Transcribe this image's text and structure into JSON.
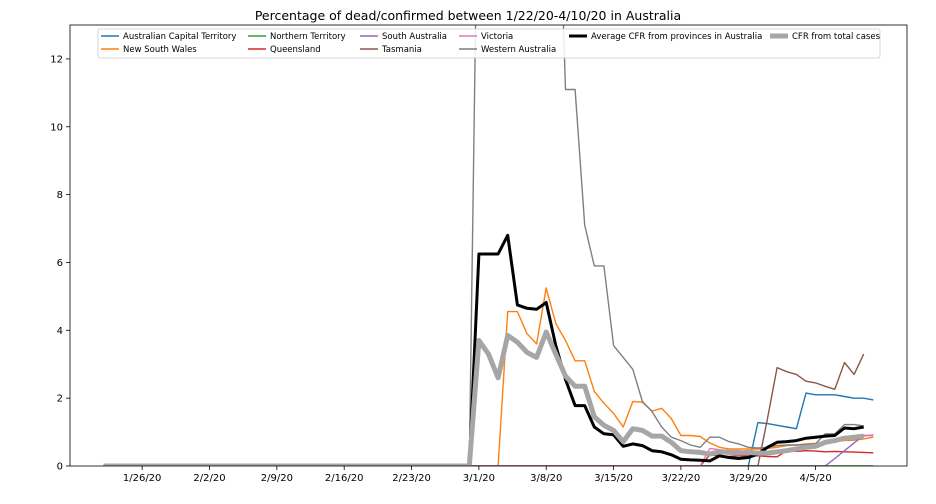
{
  "chart_data": {
    "type": "line",
    "title": "Percentage of dead/confirmed between 1/22/20-4/10/20 in Australia",
    "xlabel": "",
    "ylabel": "",
    "ylim": [
      0,
      13
    ],
    "grid": false,
    "legend_position": "top",
    "x_start_date": "1/22/20",
    "x_ticks": [
      {
        "label": "1/26/20",
        "day": 4
      },
      {
        "label": "2/2/20",
        "day": 11
      },
      {
        "label": "2/9/20",
        "day": 18
      },
      {
        "label": "2/16/20",
        "day": 25
      },
      {
        "label": "2/23/20",
        "day": 32
      },
      {
        "label": "3/1/20",
        "day": 39
      },
      {
        "label": "3/8/20",
        "day": 46
      },
      {
        "label": "3/15/20",
        "day": 53
      },
      {
        "label": "3/22/20",
        "day": 60
      },
      {
        "label": "3/29/20",
        "day": 67
      },
      {
        "label": "4/5/20",
        "day": 74
      }
    ],
    "y_ticks": [
      0,
      2,
      4,
      6,
      8,
      10,
      12
    ],
    "series": [
      {
        "name": "Australian Capital Territory",
        "color": "#1f77b4",
        "width": 1.4,
        "points": [
          [
            0,
            0
          ],
          [
            67,
            0
          ],
          [
            68,
            1.28
          ],
          [
            69,
            1.25
          ],
          [
            70,
            1.2
          ],
          [
            71,
            1.15
          ],
          [
            72,
            1.1
          ],
          [
            73,
            2.15
          ],
          [
            74,
            2.1
          ],
          [
            75,
            2.1
          ],
          [
            76,
            2.1
          ],
          [
            77,
            2.05
          ],
          [
            78,
            2.0
          ],
          [
            79,
            2.0
          ],
          [
            80,
            1.95
          ]
        ]
      },
      {
        "name": "New South Wales",
        "color": "#ff7f0e",
        "width": 1.4,
        "points": [
          [
            0,
            0
          ],
          [
            41,
            0
          ],
          [
            42,
            4.55
          ],
          [
            43,
            4.55
          ],
          [
            44,
            3.9
          ],
          [
            45,
            3.6
          ],
          [
            46,
            5.25
          ],
          [
            47,
            4.2
          ],
          [
            48,
            3.7
          ],
          [
            49,
            3.1
          ],
          [
            50,
            3.1
          ],
          [
            51,
            2.2
          ],
          [
            52,
            1.85
          ],
          [
            53,
            1.55
          ],
          [
            54,
            1.15
          ],
          [
            55,
            1.9
          ],
          [
            56,
            1.88
          ],
          [
            57,
            1.62
          ],
          [
            58,
            1.7
          ],
          [
            59,
            1.4
          ],
          [
            60,
            0.9
          ],
          [
            61,
            0.9
          ],
          [
            62,
            0.87
          ],
          [
            63,
            0.68
          ],
          [
            64,
            0.55
          ],
          [
            65,
            0.5
          ],
          [
            66,
            0.5
          ],
          [
            67,
            0.5
          ],
          [
            68,
            0.5
          ],
          [
            69,
            0.52
          ],
          [
            70,
            0.55
          ],
          [
            71,
            0.6
          ],
          [
            72,
            0.62
          ],
          [
            73,
            0.65
          ],
          [
            74,
            0.67
          ],
          [
            75,
            0.7
          ],
          [
            76,
            0.72
          ],
          [
            77,
            0.75
          ],
          [
            78,
            0.76
          ],
          [
            79,
            0.8
          ],
          [
            80,
            0.85
          ]
        ]
      },
      {
        "name": "Northern Territory",
        "color": "#2ca02c",
        "width": 1.4,
        "points": [
          [
            0,
            0
          ],
          [
            80,
            0
          ]
        ]
      },
      {
        "name": "Queensland",
        "color": "#d62728",
        "width": 1.4,
        "points": [
          [
            0,
            0
          ],
          [
            62,
            0
          ],
          [
            63,
            0.33
          ],
          [
            64,
            0.3
          ],
          [
            65,
            0.28
          ],
          [
            66,
            0.3
          ],
          [
            67,
            0.3
          ],
          [
            68,
            0.3
          ],
          [
            69,
            0.28
          ],
          [
            70,
            0.27
          ],
          [
            71,
            0.45
          ],
          [
            72,
            0.43
          ],
          [
            73,
            0.45
          ],
          [
            74,
            0.44
          ],
          [
            75,
            0.42
          ],
          [
            76,
            0.43
          ],
          [
            77,
            0.42
          ],
          [
            78,
            0.41
          ],
          [
            79,
            0.4
          ],
          [
            80,
            0.39
          ]
        ]
      },
      {
        "name": "South Australia",
        "color": "#9467bd",
        "width": 1.4,
        "points": [
          [
            0,
            0
          ],
          [
            75,
            0
          ],
          [
            76,
            0.22
          ],
          [
            77,
            0.45
          ],
          [
            78,
            0.68
          ],
          [
            79,
            0.9
          ],
          [
            80,
            0.9
          ]
        ]
      },
      {
        "name": "Tasmania",
        "color": "#8c564b",
        "width": 1.4,
        "points": [
          [
            0,
            0
          ],
          [
            68,
            0
          ],
          [
            69,
            1.4
          ],
          [
            70,
            2.9
          ],
          [
            71,
            2.78
          ],
          [
            72,
            2.7
          ],
          [
            73,
            2.5
          ],
          [
            74,
            2.45
          ],
          [
            75,
            2.35
          ],
          [
            76,
            2.26
          ],
          [
            77,
            3.05
          ],
          [
            78,
            2.7
          ],
          [
            79,
            3.3
          ]
        ]
      },
      {
        "name": "Victoria",
        "color": "#e377c2",
        "width": 1.4,
        "points": [
          [
            0,
            0
          ],
          [
            62,
            0
          ],
          [
            63,
            0.52
          ],
          [
            64,
            0.48
          ],
          [
            65,
            0.45
          ],
          [
            66,
            0.45
          ],
          [
            67,
            0.42
          ],
          [
            68,
            0.38
          ],
          [
            69,
            0.4
          ],
          [
            70,
            0.45
          ],
          [
            71,
            0.5
          ],
          [
            72,
            0.55
          ],
          [
            73,
            0.6
          ],
          [
            74,
            0.65
          ],
          [
            75,
            0.68
          ],
          [
            76,
            0.75
          ],
          [
            77,
            0.8
          ],
          [
            78,
            0.82
          ],
          [
            79,
            0.88
          ],
          [
            80,
            0.92
          ]
        ]
      },
      {
        "name": "Western Australia",
        "color": "#7f7f7f",
        "width": 1.4,
        "points": [
          [
            0,
            0
          ],
          [
            38,
            0
          ],
          [
            39,
            20
          ],
          [
            47,
            20
          ],
          [
            48,
            11.1
          ],
          [
            49,
            11.1
          ],
          [
            50,
            7.1
          ],
          [
            51,
            5.9
          ],
          [
            52,
            5.9
          ],
          [
            53,
            3.55
          ],
          [
            54,
            3.2
          ],
          [
            55,
            2.85
          ],
          [
            56,
            1.9
          ],
          [
            57,
            1.6
          ],
          [
            58,
            1.15
          ],
          [
            59,
            0.85
          ],
          [
            60,
            0.75
          ],
          [
            61,
            0.62
          ],
          [
            62,
            0.55
          ],
          [
            63,
            0.85
          ],
          [
            64,
            0.85
          ],
          [
            65,
            0.72
          ],
          [
            66,
            0.65
          ],
          [
            67,
            0.55
          ],
          [
            68,
            0.53
          ],
          [
            69,
            0.55
          ],
          [
            70,
            0.6
          ],
          [
            71,
            0.62
          ],
          [
            72,
            0.62
          ],
          [
            73,
            0.63
          ],
          [
            74,
            0.65
          ],
          [
            75,
            0.95
          ],
          [
            76,
            0.95
          ],
          [
            77,
            1.22
          ],
          [
            78,
            1.22
          ],
          [
            79,
            1.18
          ]
        ]
      },
      {
        "name": "Average CFR from provinces in Australia",
        "color": "#000000",
        "width": 3,
        "points": [
          [
            0,
            0
          ],
          [
            38,
            0
          ],
          [
            39,
            6.25
          ],
          [
            40,
            6.25
          ],
          [
            41,
            6.25
          ],
          [
            42,
            6.8
          ],
          [
            43,
            4.75
          ],
          [
            44,
            4.65
          ],
          [
            45,
            4.62
          ],
          [
            46,
            4.82
          ],
          [
            47,
            3.55
          ],
          [
            48,
            2.55
          ],
          [
            49,
            1.78
          ],
          [
            50,
            1.78
          ],
          [
            51,
            1.15
          ],
          [
            52,
            0.95
          ],
          [
            53,
            0.92
          ],
          [
            54,
            0.58
          ],
          [
            55,
            0.65
          ],
          [
            56,
            0.6
          ],
          [
            57,
            0.45
          ],
          [
            58,
            0.42
          ],
          [
            59,
            0.33
          ],
          [
            60,
            0.2
          ],
          [
            61,
            0.18
          ],
          [
            62,
            0.17
          ],
          [
            63,
            0.15
          ],
          [
            64,
            0.3
          ],
          [
            65,
            0.25
          ],
          [
            66,
            0.22
          ],
          [
            67,
            0.25
          ],
          [
            68,
            0.35
          ],
          [
            69,
            0.55
          ],
          [
            70,
            0.7
          ],
          [
            71,
            0.72
          ],
          [
            72,
            0.75
          ],
          [
            73,
            0.82
          ],
          [
            74,
            0.85
          ],
          [
            75,
            0.88
          ],
          [
            76,
            0.9
          ],
          [
            77,
            1.12
          ],
          [
            78,
            1.1
          ],
          [
            79,
            1.15
          ]
        ]
      },
      {
        "name": "CFR from total cases",
        "color": "#a6a6a6",
        "width": 5,
        "points": [
          [
            0,
            0
          ],
          [
            38,
            0
          ],
          [
            39,
            3.7
          ],
          [
            40,
            3.3
          ],
          [
            41,
            2.6
          ],
          [
            42,
            3.85
          ],
          [
            43,
            3.65
          ],
          [
            44,
            3.35
          ],
          [
            45,
            3.2
          ],
          [
            46,
            3.95
          ],
          [
            47,
            3.3
          ],
          [
            48,
            2.65
          ],
          [
            49,
            2.35
          ],
          [
            50,
            2.35
          ],
          [
            51,
            1.45
          ],
          [
            52,
            1.2
          ],
          [
            53,
            1.05
          ],
          [
            54,
            0.72
          ],
          [
            55,
            1.1
          ],
          [
            56,
            1.05
          ],
          [
            57,
            0.88
          ],
          [
            58,
            0.88
          ],
          [
            59,
            0.7
          ],
          [
            60,
            0.45
          ],
          [
            61,
            0.42
          ],
          [
            62,
            0.4
          ],
          [
            63,
            0.35
          ],
          [
            64,
            0.42
          ],
          [
            65,
            0.4
          ],
          [
            66,
            0.38
          ],
          [
            67,
            0.4
          ],
          [
            68,
            0.38
          ],
          [
            69,
            0.38
          ],
          [
            70,
            0.42
          ],
          [
            71,
            0.45
          ],
          [
            72,
            0.5
          ],
          [
            73,
            0.55
          ],
          [
            74,
            0.58
          ],
          [
            75,
            0.7
          ],
          [
            76,
            0.75
          ],
          [
            77,
            0.82
          ],
          [
            78,
            0.85
          ],
          [
            79,
            0.88
          ]
        ]
      }
    ]
  }
}
